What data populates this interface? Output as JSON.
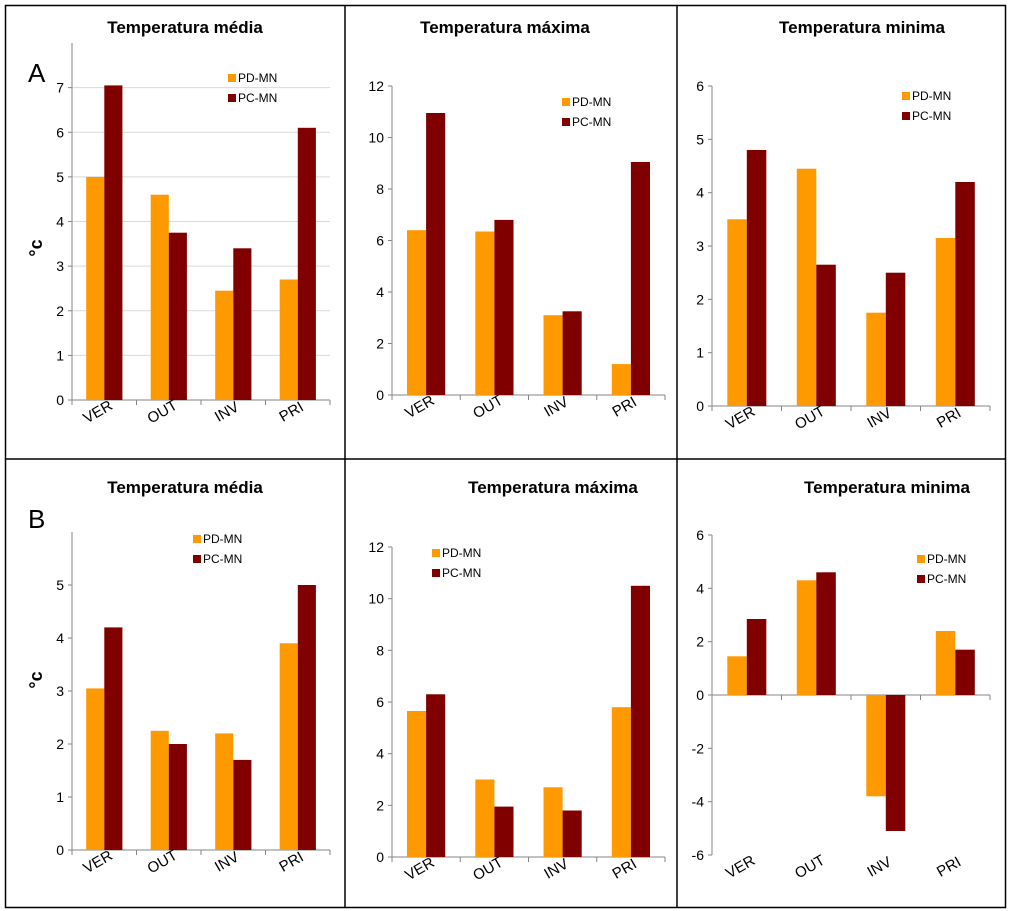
{
  "colors": {
    "pd": "#ff9900",
    "pc": "#800000"
  },
  "rows": [
    {
      "letter": "A",
      "ylabel": "°c"
    },
    {
      "letter": "B",
      "ylabel": "°c"
    }
  ],
  "chart_data": [
    {
      "type": "bar",
      "title": "Temperatura média",
      "categories": [
        "VER",
        "OUT",
        "INV",
        "PRI"
      ],
      "series": [
        {
          "name": "PD-MN",
          "values": [
            5.0,
            4.6,
            2.45,
            2.7
          ]
        },
        {
          "name": "PC-MN",
          "values": [
            7.05,
            3.75,
            3.4,
            6.1
          ]
        }
      ],
      "ylim": [
        0,
        8
      ],
      "yticks": [
        0,
        1,
        2,
        3,
        4,
        5,
        6,
        7
      ],
      "ylabel": "°c",
      "grid": true,
      "legend": "top-right"
    },
    {
      "type": "bar",
      "title": "Temperatura máxima",
      "categories": [
        "VER",
        "OUT",
        "INV",
        "PRI"
      ],
      "series": [
        {
          "name": "PD-MN",
          "values": [
            6.4,
            6.35,
            3.1,
            1.2
          ]
        },
        {
          "name": "PC-MN",
          "values": [
            10.95,
            6.8,
            3.25,
            9.05
          ]
        }
      ],
      "ylim": [
        0,
        12
      ],
      "yticks": [
        0,
        2,
        4,
        6,
        8,
        10,
        12
      ],
      "ylabel": "",
      "grid": false,
      "legend": "top-right"
    },
    {
      "type": "bar",
      "title": "Temperatura minima",
      "categories": [
        "VER",
        "OUT",
        "INV",
        "PRI"
      ],
      "series": [
        {
          "name": "PD-MN",
          "values": [
            3.5,
            4.45,
            1.75,
            3.15
          ]
        },
        {
          "name": "PC-MN",
          "values": [
            4.8,
            2.65,
            2.5,
            4.2
          ]
        }
      ],
      "ylim": [
        0,
        6
      ],
      "yticks": [
        0,
        1,
        2,
        3,
        4,
        5,
        6
      ],
      "ylabel": "",
      "grid": false,
      "legend": "top-right"
    },
    {
      "type": "bar",
      "title": "Temperatura média",
      "categories": [
        "VER",
        "OUT",
        "INV",
        "PRI"
      ],
      "series": [
        {
          "name": "PD-MN",
          "values": [
            3.05,
            2.25,
            2.2,
            3.9
          ]
        },
        {
          "name": "PC-MN",
          "values": [
            4.2,
            2.0,
            1.7,
            5.0
          ]
        }
      ],
      "ylim": [
        0,
        6
      ],
      "yticks": [
        0,
        1,
        2,
        3,
        4,
        5
      ],
      "ylabel": "°c",
      "grid": false,
      "legend": "top-right"
    },
    {
      "type": "bar",
      "title": "Temperatura máxima",
      "categories": [
        "VER",
        "OUT",
        "INV",
        "PRI"
      ],
      "series": [
        {
          "name": "PD-MN",
          "values": [
            5.65,
            3.0,
            2.7,
            5.8
          ]
        },
        {
          "name": "PC-MN",
          "values": [
            6.3,
            1.95,
            1.8,
            10.5
          ]
        }
      ],
      "ylim": [
        0,
        12
      ],
      "yticks": [
        0,
        2,
        4,
        6,
        8,
        10,
        12
      ],
      "ylabel": "",
      "grid": false,
      "legend": "top-left"
    },
    {
      "type": "bar",
      "title": "Temperatura minima",
      "categories": [
        "VER",
        "OUT",
        "INV",
        "PRI"
      ],
      "series": [
        {
          "name": "PD-MN",
          "values": [
            1.45,
            4.3,
            -3.8,
            2.4
          ]
        },
        {
          "name": "PC-MN",
          "values": [
            2.85,
            4.6,
            -5.1,
            1.7
          ]
        }
      ],
      "ylim": [
        -6,
        6
      ],
      "yticks": [
        -6,
        -4,
        -2,
        0,
        2,
        4,
        6
      ],
      "ylabel": "",
      "grid": false,
      "legend": "top-right"
    }
  ]
}
